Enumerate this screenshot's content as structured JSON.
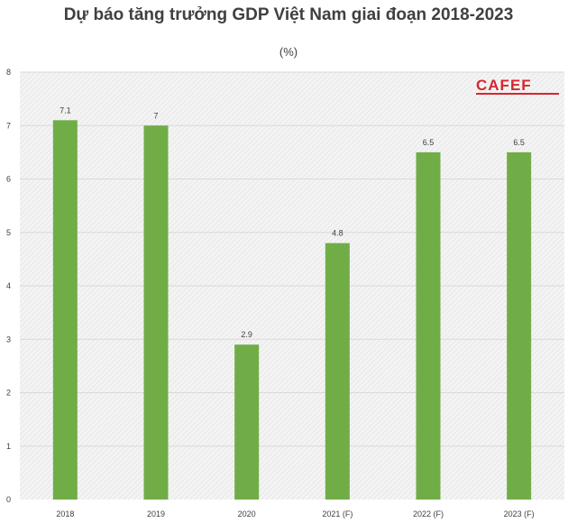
{
  "chart_data": {
    "type": "bar",
    "title": "Dự báo tăng trưởng GDP Việt Nam giai đoạn 2018-2023",
    "subtitle": "(%)",
    "categories": [
      "2018",
      "2019",
      "2020",
      "2021 (F)",
      "2022 (F)",
      "2023 (F)"
    ],
    "values": [
      7.1,
      7,
      2.9,
      4.8,
      6.5,
      6.5
    ],
    "value_labels": [
      "7.1",
      "7",
      "2.9",
      "4.8",
      "6.5",
      "6.5"
    ],
    "ylim": [
      0,
      8
    ],
    "yticks": [
      "0",
      "1",
      "2",
      "3",
      "4",
      "5",
      "6",
      "7",
      "8"
    ],
    "xlabel": "",
    "ylabel": "",
    "bar_color": "#70ad47",
    "grid": true,
    "legend": "none"
  },
  "watermark": {
    "text": "CAFEF",
    "color": "#d7262d"
  }
}
